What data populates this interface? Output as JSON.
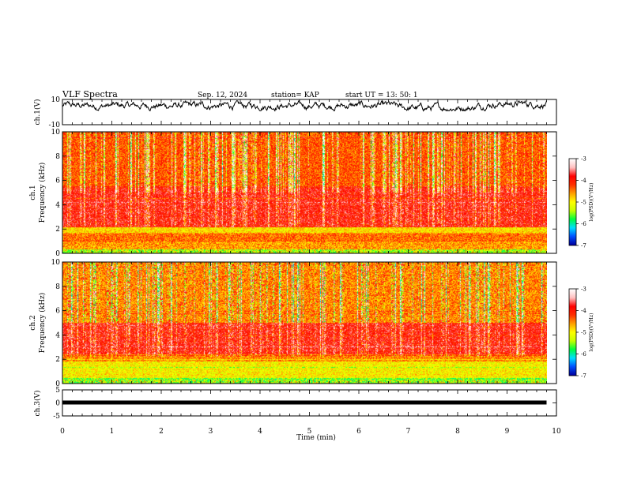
{
  "header": {
    "title": "VLF Spectra",
    "date": "Sep. 12, 2024",
    "station": "station= KAP",
    "start": "start  UT  =   13: 50: 1"
  },
  "chart_data": [
    {
      "type": "line",
      "ylabel": "ch.1(V)",
      "ylim": [
        -10,
        10
      ],
      "y_ticks": [
        "10",
        "-10"
      ],
      "description_level": "voltage waveform oscillating around about 5 V (range ~2 to 8) over 0-9.8 min",
      "x_extent_min": 9.8
    },
    {
      "type": "heatmap",
      "ylabel": "ch.1\nFrequency  (kHz)",
      "ylabel_lines": [
        "ch.1",
        "Frequency  (kHz)"
      ],
      "ylim": [
        0,
        10
      ],
      "y_ticks": [
        "0",
        "2",
        "4",
        "6",
        "8",
        "10"
      ],
      "bands_khz": [
        {
          "from": 0,
          "to": 0.3,
          "level": -5.5
        },
        {
          "from": 0.3,
          "to": 1.0,
          "level": -4.6
        },
        {
          "from": 1.0,
          "to": 1.6,
          "level": -4.4
        },
        {
          "from": 1.6,
          "to": 2.1,
          "level": -4.9
        },
        {
          "from": 2.1,
          "to": 5.5,
          "level": -3.9
        },
        {
          "from": 5.5,
          "to": 10,
          "level": -4.3
        }
      ],
      "colorbar": {
        "label": "log(PSD)(V²/Hz)",
        "ticks": [
          "-3",
          "-4",
          "-5",
          "-6",
          "-7"
        ],
        "range": [
          -7,
          -3
        ]
      }
    },
    {
      "type": "heatmap",
      "ylabel": "ch.2\nFrequency  (kHz)",
      "ylabel_lines": [
        "ch.2",
        "Frequency  (kHz)"
      ],
      "ylim": [
        0,
        10
      ],
      "y_ticks": [
        "0",
        "2",
        "4",
        "6",
        "8",
        "10"
      ],
      "bands_khz": [
        {
          "from": 0,
          "to": 0.4,
          "level": -5.6
        },
        {
          "from": 0.4,
          "to": 1.8,
          "level": -5.0
        },
        {
          "from": 1.8,
          "to": 2.4,
          "level": -4.5
        },
        {
          "from": 2.4,
          "to": 5.0,
          "level": -3.9
        },
        {
          "from": 5.0,
          "to": 10,
          "level": -4.5
        }
      ],
      "colorbar": {
        "label": "log(PSD)(V²/Hz)",
        "ticks": [
          "-3",
          "-4",
          "-5",
          "-6",
          "-7"
        ],
        "range": [
          -7,
          -3
        ]
      }
    },
    {
      "type": "line",
      "ylabel": "ch.3(V)",
      "ylim": [
        -5,
        5
      ],
      "y_ticks": [
        "5",
        "0",
        "-5"
      ],
      "constant_value": 0,
      "x_extent_min": 9.8
    }
  ],
  "xaxis": {
    "label": "Time  (min)",
    "ticks": [
      "0",
      "1",
      "2",
      "3",
      "4",
      "5",
      "6",
      "7",
      "8",
      "9",
      "10"
    ],
    "range": [
      0,
      10
    ]
  },
  "colors": {
    "colormap": [
      "#0000a0",
      "#0050ff",
      "#00e0ff",
      "#00ff40",
      "#c8ff00",
      "#ffff00",
      "#ffa000",
      "#ff3000",
      "#ff0000",
      "#ffc0c0",
      "#ffffff"
    ]
  }
}
